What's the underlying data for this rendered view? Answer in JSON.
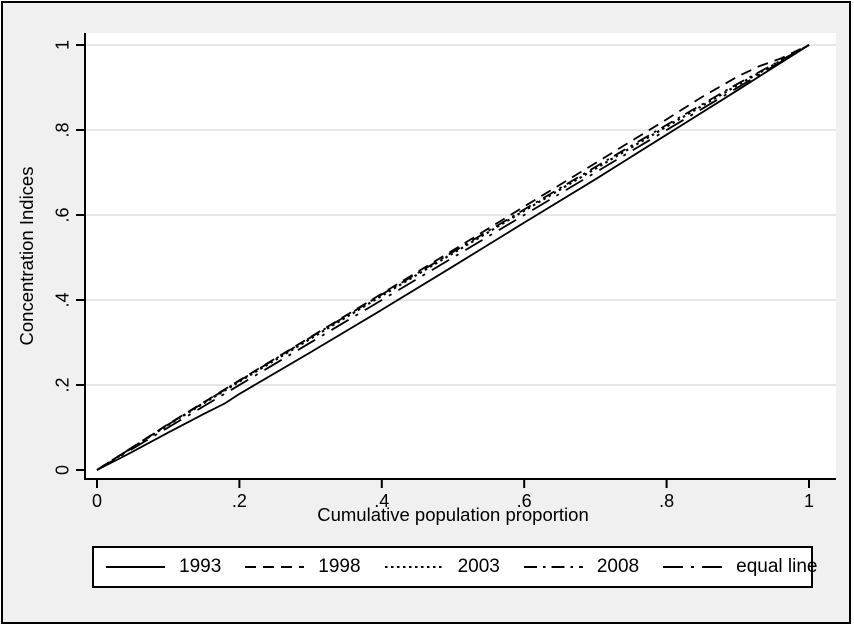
{
  "colors": {
    "background": "#f0f0f0",
    "plot_background": "#ffffff",
    "gridline": "#e6e6e6",
    "axis": "#000000",
    "line": "#000000",
    "text": "#000000"
  },
  "axes": {
    "x": {
      "title": "Cumulative population proportion",
      "tick_labels": [
        "0",
        ".2",
        ".4",
        ".6",
        ".8",
        "1"
      ],
      "tick_values": [
        0,
        0.2,
        0.4,
        0.6,
        0.8,
        1
      ]
    },
    "y": {
      "title": "Concentration Indices",
      "tick_labels": [
        "0",
        ".2",
        ".4",
        ".6",
        ".8",
        "1"
      ],
      "tick_values": [
        0,
        0.2,
        0.4,
        0.6,
        0.8,
        1
      ]
    }
  },
  "legend": {
    "items": [
      {
        "label": "1993",
        "style": "solid"
      },
      {
        "label": "1998",
        "style": "dashed"
      },
      {
        "label": "2003",
        "style": "dotted"
      },
      {
        "label": "2008",
        "style": "dashdot"
      },
      {
        "label": "equal line",
        "style": "longdashdot"
      }
    ]
  },
  "chart_data": {
    "type": "line",
    "title": "",
    "xlabel": "Cumulative population proportion",
    "ylabel": "Concentration Indices",
    "xlim": [
      0,
      1
    ],
    "ylim": [
      0,
      1
    ],
    "xticks": [
      0,
      0.2,
      0.4,
      0.6,
      0.8,
      1
    ],
    "yticks": [
      0,
      0.2,
      0.4,
      0.6,
      0.8,
      1
    ],
    "grid": "horizontal-only",
    "legend_position": "bottom",
    "series": [
      {
        "name": "1993",
        "style": "solid",
        "x": [
          0,
          0.05,
          0.1,
          0.15,
          0.18,
          0.2,
          0.3,
          0.4,
          0.5,
          0.6,
          0.7,
          0.8,
          0.9,
          0.95,
          1
        ],
        "y": [
          0,
          0.043,
          0.088,
          0.132,
          0.157,
          0.179,
          0.277,
          0.377,
          0.479,
          0.582,
          0.684,
          0.789,
          0.894,
          0.947,
          1
        ]
      },
      {
        "name": "1998",
        "style": "dashed",
        "x": [
          0,
          0.1,
          0.2,
          0.3,
          0.4,
          0.5,
          0.6,
          0.7,
          0.8,
          0.85,
          0.9,
          0.93,
          0.96,
          1
        ],
        "y": [
          0,
          0.108,
          0.211,
          0.313,
          0.415,
          0.517,
          0.62,
          0.722,
          0.825,
          0.878,
          0.926,
          0.95,
          0.968,
          1
        ]
      },
      {
        "name": "2003",
        "style": "dotted",
        "x": [
          0,
          0.1,
          0.2,
          0.3,
          0.4,
          0.5,
          0.6,
          0.7,
          0.8,
          0.9,
          1
        ],
        "y": [
          0,
          0.106,
          0.208,
          0.309,
          0.41,
          0.51,
          0.61,
          0.709,
          0.808,
          0.906,
          1
        ]
      },
      {
        "name": "2008",
        "style": "dashdot",
        "x": [
          0,
          0.1,
          0.2,
          0.3,
          0.4,
          0.5,
          0.6,
          0.7,
          0.8,
          0.9,
          1
        ],
        "y": [
          0,
          0.107,
          0.21,
          0.312,
          0.413,
          0.513,
          0.613,
          0.713,
          0.812,
          0.909,
          1
        ]
      },
      {
        "name": "equal line",
        "style": "longdashdot",
        "x": [
          0,
          1
        ],
        "y": [
          0,
          1
        ]
      }
    ]
  }
}
